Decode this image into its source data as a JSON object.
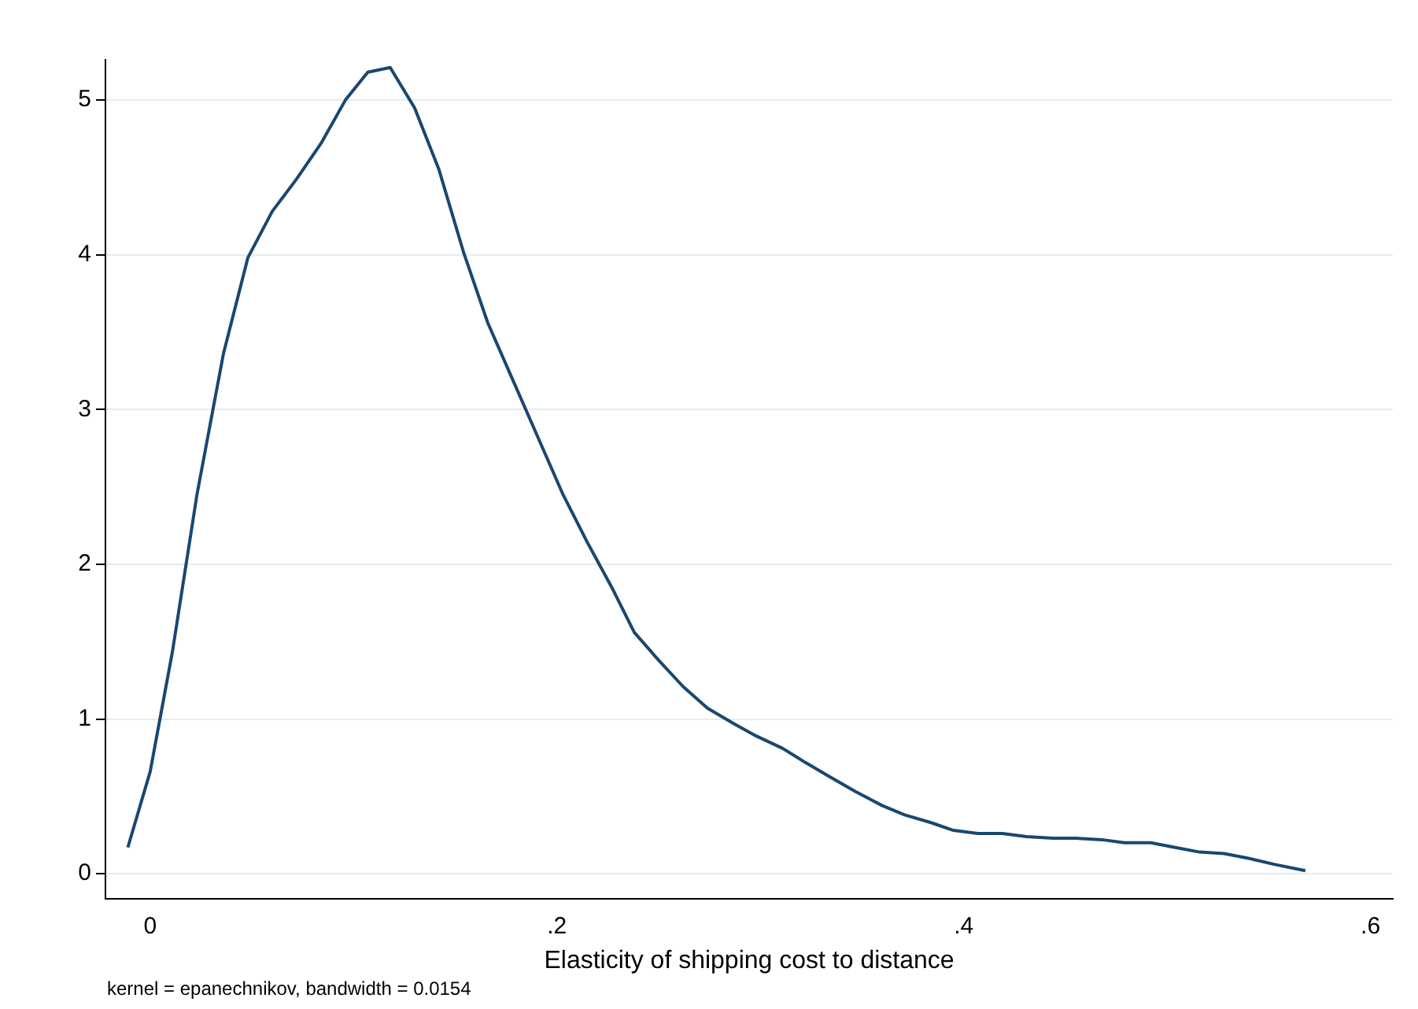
{
  "chart_data": {
    "type": "line",
    "xlabel": "Elasticity of shipping cost to distance",
    "annotations": [
      "kernel = epanechnikov, bandwidth = 0.0154"
    ],
    "xlim": [
      -0.022,
      0.611
    ],
    "ylim": [
      -0.16,
      5.26
    ],
    "xticks": [
      {
        "value": 0,
        "label": "0"
      },
      {
        "value": 0.2,
        "label": ".2"
      },
      {
        "value": 0.4,
        "label": ".4"
      },
      {
        "value": 0.6,
        "label": ".6"
      }
    ],
    "yticks": [
      0,
      1,
      2,
      3,
      4,
      5
    ],
    "grid": "y",
    "legend": false,
    "marker": "none",
    "line_style": "solid",
    "series": [
      {
        "color": "#1a476f",
        "x": [
          -0.011,
          0,
          0.011,
          0.023,
          0.036,
          0.048,
          0.06,
          0.072,
          0.084,
          0.096,
          0.107,
          0.118,
          0.13,
          0.142,
          0.154,
          0.166,
          0.179,
          0.19,
          0.203,
          0.215,
          0.227,
          0.238,
          0.25,
          0.262,
          0.274,
          0.287,
          0.298,
          0.311,
          0.322,
          0.335,
          0.347,
          0.36,
          0.371,
          0.384,
          0.395,
          0.407,
          0.419,
          0.431,
          0.444,
          0.455,
          0.468,
          0.479,
          0.492,
          0.504,
          0.516,
          0.528,
          0.54,
          0.553,
          0.568
        ],
        "values": [
          0.17,
          0.66,
          1.44,
          2.45,
          3.36,
          3.98,
          4.28,
          4.49,
          4.72,
          5.0,
          5.18,
          5.21,
          4.95,
          4.55,
          4.02,
          3.56,
          3.17,
          2.84,
          2.45,
          2.14,
          1.85,
          1.56,
          1.38,
          1.21,
          1.07,
          0.97,
          0.89,
          0.81,
          0.72,
          0.62,
          0.53,
          0.44,
          0.38,
          0.33,
          0.28,
          0.26,
          0.26,
          0.24,
          0.23,
          0.23,
          0.22,
          0.2,
          0.2,
          0.17,
          0.14,
          0.13,
          0.1,
          0.06,
          0.02
        ]
      }
    ]
  }
}
